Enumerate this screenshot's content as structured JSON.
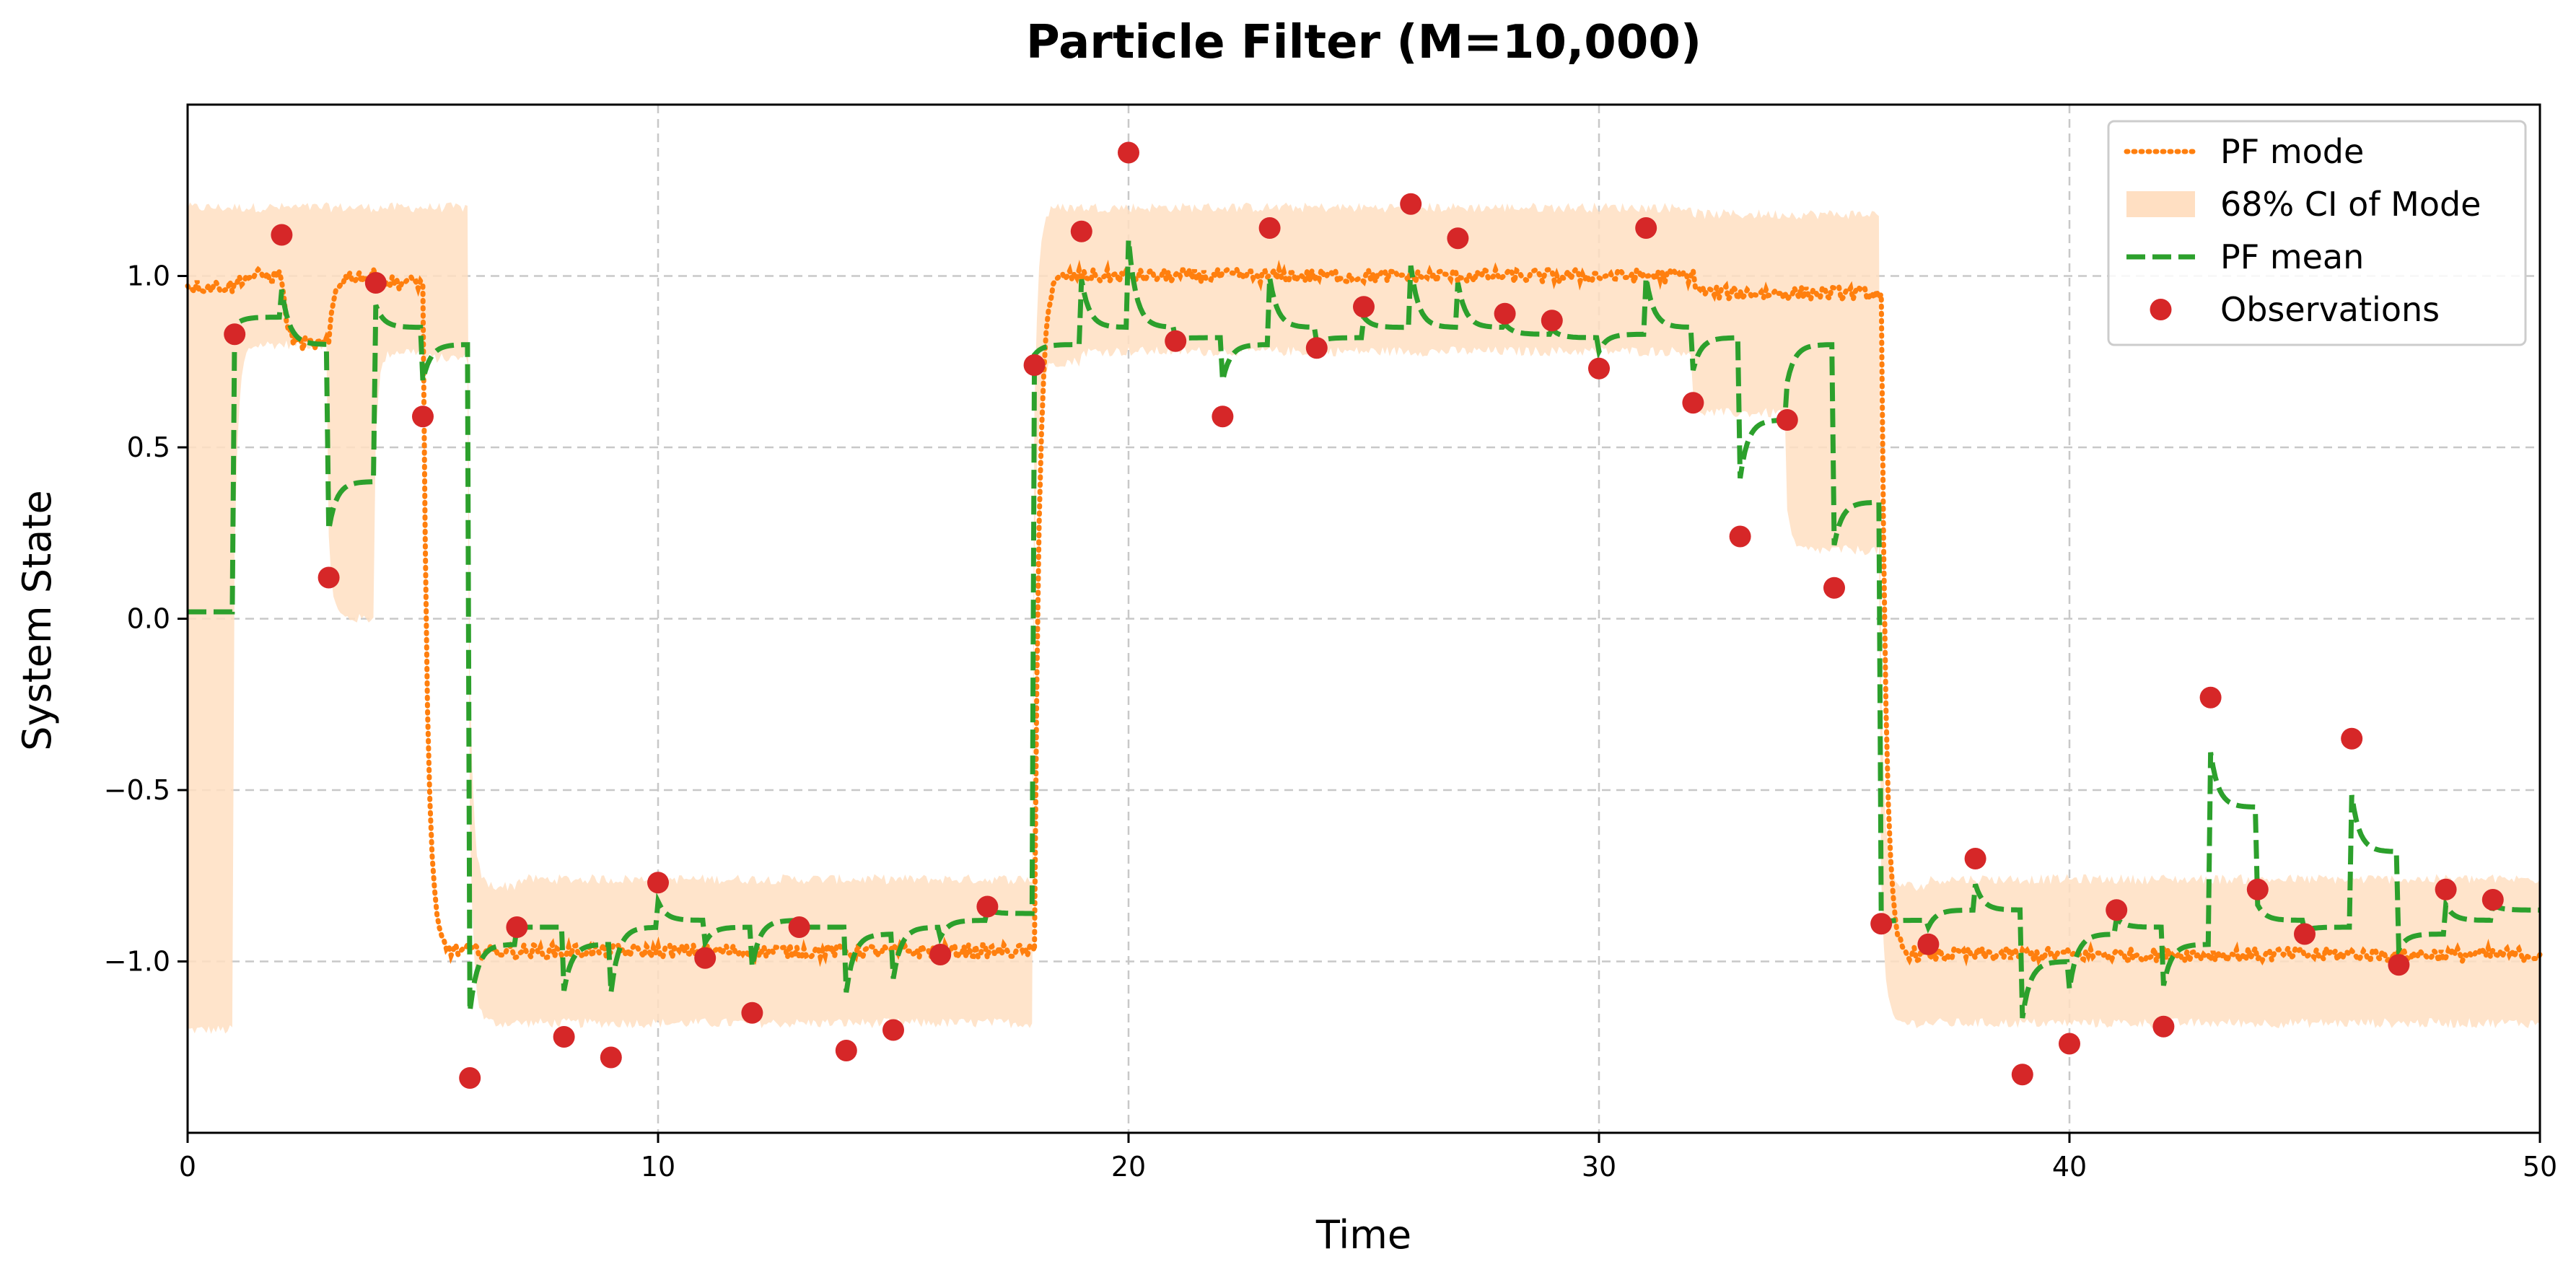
{
  "chart_data": {
    "type": "line",
    "title": "Particle Filter (M=10,000)",
    "xlabel": "Time",
    "ylabel": "System State",
    "xlim": [
      0,
      50
    ],
    "ylim": [
      -1.5,
      1.5
    ],
    "xticks": [
      0,
      10,
      20,
      30,
      40,
      50
    ],
    "xtick_labels": [
      "0",
      "10",
      "20",
      "30",
      "40",
      "50"
    ],
    "yticks": [
      -1.0,
      -0.5,
      0.0,
      0.5,
      1.0
    ],
    "ytick_labels": [
      "−1.0",
      "−0.5",
      "0.0",
      "0.5",
      "1.0"
    ],
    "grid": true,
    "legend_position": "top-right",
    "legend": [
      {
        "label": "PF mode",
        "kind": "dotted-line",
        "color": "#ff7f0e"
      },
      {
        "label": "68% CI of Mode",
        "kind": "band",
        "color": "#ffdfc2"
      },
      {
        "label": "PF mean",
        "kind": "dashed-line",
        "color": "#2ca02c"
      },
      {
        "label": "Observations",
        "kind": "marker",
        "color": "#d62728"
      }
    ],
    "colors": {
      "mode": "#ff7f0e",
      "ci": "#ffdfc2",
      "mean": "#2ca02c",
      "obs": "#d62728",
      "grid": "#c8c8c8"
    },
    "series": [
      {
        "name": "Observations",
        "x": [
          1,
          2,
          3,
          4,
          5,
          6,
          7,
          8,
          9,
          10,
          11,
          12,
          13,
          14,
          15,
          16,
          17,
          18,
          19,
          20,
          21,
          22,
          23,
          24,
          25,
          26,
          27,
          28,
          29,
          30,
          31,
          32,
          33,
          34,
          35,
          36,
          37,
          38,
          39,
          40,
          41,
          42,
          43,
          44,
          45,
          46,
          47,
          48,
          49
        ],
        "values": [
          0.83,
          1.12,
          0.12,
          0.98,
          0.59,
          -1.34,
          -0.9,
          -1.22,
          -1.28,
          -0.77,
          -0.99,
          -1.15,
          -0.9,
          -1.26,
          -1.2,
          -0.98,
          -0.84,
          0.74,
          1.13,
          1.36,
          0.81,
          0.59,
          1.14,
          0.79,
          0.91,
          1.21,
          1.11,
          0.89,
          0.87,
          0.73,
          1.14,
          0.63,
          0.24,
          0.58,
          0.09,
          -0.89,
          -0.95,
          -0.7,
          -1.33,
          -1.24,
          -0.85,
          -1.19,
          -0.23,
          -0.79,
          -0.92,
          -0.35,
          -1.01,
          -0.79,
          -0.82
        ]
      },
      {
        "name": "PF mode",
        "level_by_interval": [
          0.97,
          1.0,
          0.8,
          1.0,
          0.98,
          -0.97,
          -0.97,
          -0.97,
          -0.97,
          -0.97,
          -0.97,
          -0.97,
          -0.97,
          -0.97,
          -0.97,
          -0.97,
          -0.97,
          -0.97,
          1.0,
          1.0,
          1.0,
          1.0,
          1.0,
          1.0,
          1.0,
          1.0,
          1.0,
          1.0,
          1.0,
          1.0,
          1.0,
          1.0,
          0.95,
          0.95,
          0.95,
          0.95,
          -0.98,
          -0.98,
          -0.98,
          -0.98,
          -0.98,
          -0.98,
          -0.98,
          -0.98,
          -0.98,
          -0.98,
          -0.98,
          -0.98,
          -0.98,
          -0.98
        ]
      },
      {
        "name": "PF mean",
        "level_by_interval": [
          0.02,
          0.88,
          0.8,
          0.4,
          0.85,
          0.8,
          -0.95,
          -0.9,
          -0.95,
          -0.9,
          -0.88,
          -0.9,
          -0.88,
          -0.9,
          -0.92,
          -0.9,
          -0.88,
          -0.86,
          0.8,
          0.85,
          0.85,
          0.82,
          0.8,
          0.85,
          0.82,
          0.85,
          0.85,
          0.85,
          0.83,
          0.82,
          0.83,
          0.85,
          0.82,
          0.58,
          0.8,
          0.34,
          -0.88,
          -0.85,
          -0.85,
          -1.0,
          -0.92,
          -0.9,
          -0.95,
          -0.55,
          -0.88,
          -0.9,
          -0.68,
          -0.92,
          -0.88,
          -0.85
        ]
      },
      {
        "name": "68% CI of Mode",
        "lower_by_interval": [
          -1.2,
          0.8,
          0.8,
          0.0,
          0.78,
          0.76,
          -1.18,
          -1.18,
          -1.18,
          -1.18,
          -1.18,
          -1.18,
          -1.18,
          -1.18,
          -1.18,
          -1.18,
          -1.18,
          -1.18,
          0.75,
          0.78,
          0.78,
          0.78,
          0.78,
          0.78,
          0.78,
          0.78,
          0.78,
          0.78,
          0.78,
          0.78,
          0.78,
          0.78,
          0.6,
          0.6,
          0.2,
          0.2,
          -1.18,
          -1.18,
          -1.18,
          -1.18,
          -1.18,
          -1.18,
          -1.18,
          -1.18,
          -1.18,
          -1.18,
          -1.18,
          -1.18,
          -1.18,
          -1.18
        ],
        "upper_by_interval": [
          1.2,
          1.2,
          1.2,
          1.2,
          1.2,
          1.2,
          -0.78,
          -0.76,
          -0.76,
          -0.76,
          -0.76,
          -0.76,
          -0.76,
          -0.76,
          -0.76,
          -0.76,
          -0.76,
          -0.76,
          1.2,
          1.2,
          1.2,
          1.2,
          1.2,
          1.2,
          1.2,
          1.2,
          1.2,
          1.2,
          1.2,
          1.2,
          1.2,
          1.2,
          1.18,
          1.18,
          1.18,
          1.18,
          -0.78,
          -0.76,
          -0.76,
          -0.76,
          -0.76,
          -0.76,
          -0.76,
          -0.76,
          -0.76,
          -0.76,
          -0.76,
          -0.76,
          -0.76,
          -0.76
        ]
      }
    ]
  }
}
